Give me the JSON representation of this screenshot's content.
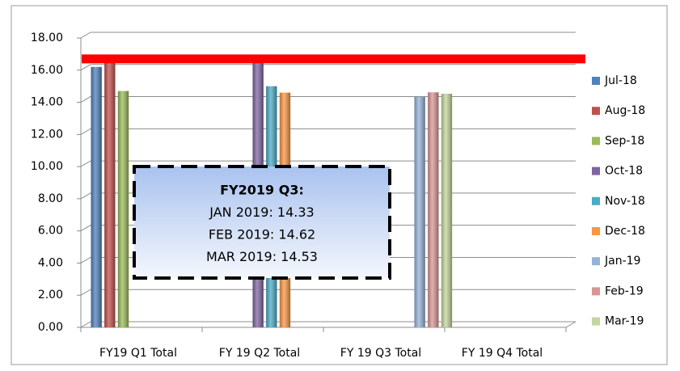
{
  "chart_data": {
    "type": "bar",
    "categories": [
      "FY19 Q1 Total",
      "FY 19 Q2 Total",
      "FY 19 Q3 Total",
      "FY 19 Q4 Total"
    ],
    "series": [
      {
        "name": "Jul-18",
        "color": "#4f81bd",
        "values": [
          16.2,
          null,
          null,
          null
        ]
      },
      {
        "name": "Aug-18",
        "color": "#c0504d",
        "values": [
          16.5,
          null,
          null,
          null
        ]
      },
      {
        "name": "Sep-18",
        "color": "#9bbb59",
        "values": [
          14.7,
          null,
          null,
          null
        ]
      },
      {
        "name": "Oct-18",
        "color": "#8064a2",
        "values": [
          null,
          16.6,
          null,
          null
        ]
      },
      {
        "name": "Nov-18",
        "color": "#4bacc6",
        "values": [
          null,
          15.0,
          null,
          null
        ]
      },
      {
        "name": "Dec-18",
        "color": "#f79646",
        "values": [
          null,
          14.6,
          null,
          null
        ]
      },
      {
        "name": "Jan-19",
        "color": "#95b3d7",
        "values": [
          null,
          null,
          14.33,
          null
        ]
      },
      {
        "name": "Feb-19",
        "color": "#d99694",
        "values": [
          null,
          null,
          14.62,
          null
        ]
      },
      {
        "name": "Mar-19",
        "color": "#c3d69b",
        "values": [
          null,
          null,
          14.53,
          null
        ]
      }
    ],
    "reference_line": {
      "value": 16.7,
      "color": "#ff0000"
    },
    "annotation": [
      "FY2019 Q3:",
      "JAN 2019: 14.33",
      "FEB 2019: 14.62",
      "MAR 2019: 14.53"
    ],
    "ylim": [
      0,
      18
    ],
    "yticks": [
      {
        "value": 0,
        "label": "0.00"
      },
      {
        "value": 2,
        "label": "2.00"
      },
      {
        "value": 4,
        "label": "4.00"
      },
      {
        "value": 6,
        "label": "6.00"
      },
      {
        "value": 8,
        "label": "8.00"
      },
      {
        "value": 10,
        "label": "10.00"
      },
      {
        "value": 12,
        "label": "12.00"
      },
      {
        "value": 14,
        "label": "14.00"
      },
      {
        "value": 16,
        "label": "16.00"
      },
      {
        "value": 18,
        "label": "18.00"
      }
    ],
    "grid": true,
    "legend": "right"
  }
}
